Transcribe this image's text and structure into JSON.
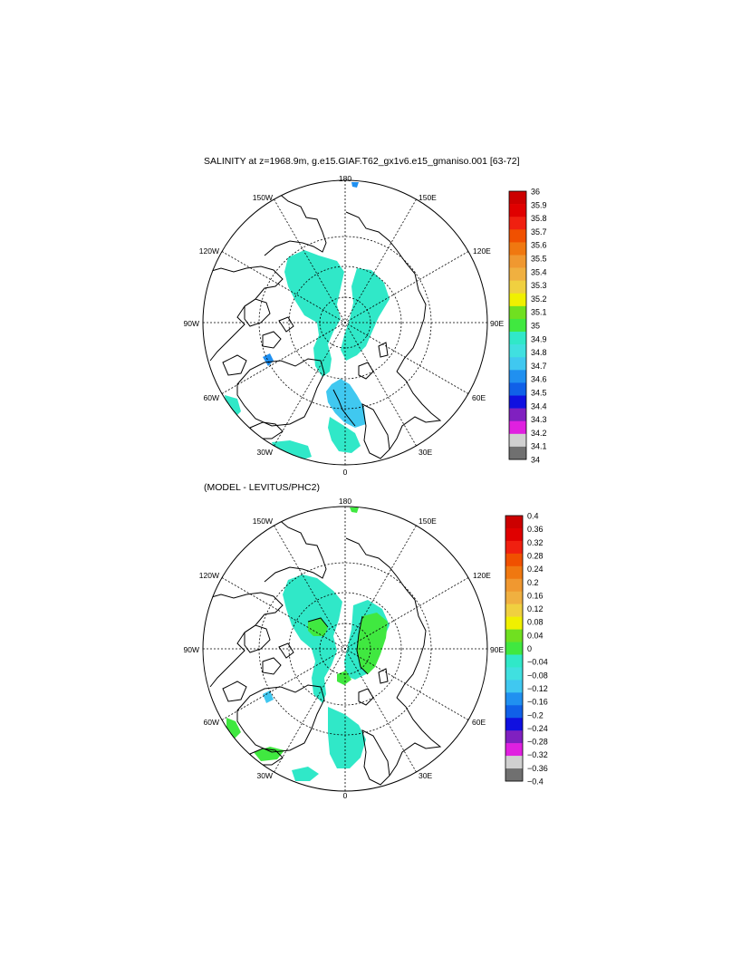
{
  "figure": {
    "panels": [
      {
        "id": "salinity",
        "title": "SALINITY at z=1968.9m, g.e15.GIAF.T62_gx1v6.e15_gmaniso.001 [63-72]",
        "longitude_labels": [
          "180",
          "150E",
          "120E",
          "90E",
          "60E",
          "30E",
          "0",
          "30W",
          "60W",
          "90W",
          "120W",
          "150W"
        ],
        "colorbar": {
          "labels": [
            "36",
            "35.9",
            "35.8",
            "35.7",
            "35.6",
            "35.5",
            "35.4",
            "35.3",
            "35.2",
            "35.1",
            "35",
            "34.9",
            "34.8",
            "34.7",
            "34.6",
            "34.5",
            "34.4",
            "34.3",
            "34.2",
            "34.1",
            "34"
          ],
          "colors": [
            "#cc0000",
            "#e00000",
            "#f02010",
            "#f05000",
            "#f07810",
            "#f09830",
            "#f0b040",
            "#f0d040",
            "#f0f000",
            "#70e020",
            "#40e840",
            "#30e8c8",
            "#40e0e0",
            "#40c8f0",
            "#2090f0",
            "#1060e8",
            "#1010e0",
            "#8020c0",
            "#e020e0",
            "#d0d0d0",
            "#707070"
          ]
        }
      },
      {
        "id": "difference",
        "title": "(MODEL - LEVITUS/PHC2)",
        "longitude_labels": [
          "180",
          "150E",
          "120E",
          "90E",
          "60E",
          "30E",
          "0",
          "30W",
          "60W",
          "90W",
          "120W",
          "150W"
        ],
        "colorbar": {
          "labels": [
            "0.4",
            "0.36",
            "0.32",
            "0.28",
            "0.24",
            "0.2",
            "0.16",
            "0.12",
            "0.08",
            "0.04",
            "0",
            "−0.04",
            "−0.08",
            "−0.12",
            "−0.16",
            "−0.2",
            "−0.24",
            "−0.28",
            "−0.32",
            "−0.36",
            "−0.4"
          ],
          "colors": [
            "#cc0000",
            "#e00000",
            "#f02010",
            "#f05000",
            "#f07810",
            "#f09830",
            "#f0b040",
            "#f0d040",
            "#f0f000",
            "#70e020",
            "#40e840",
            "#30e8c8",
            "#40e0e0",
            "#40c8f0",
            "#2090f0",
            "#1060e8",
            "#1010e0",
            "#8020c0",
            "#e020e0",
            "#d0d0d0",
            "#707070"
          ]
        }
      }
    ],
    "colors": {
      "field_main": "#30e8c8",
      "field_light_blue": "#40c8f0",
      "field_green": "#40e840",
      "field_blue": "#2090f0",
      "coast": "#000000"
    }
  }
}
